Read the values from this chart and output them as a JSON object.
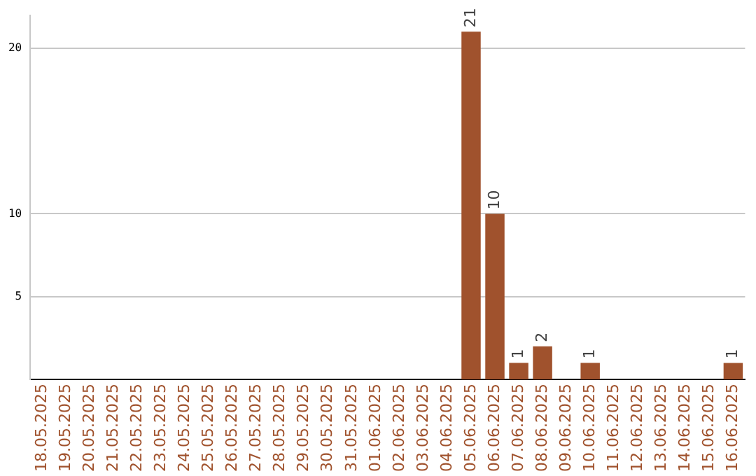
{
  "chart_data": {
    "type": "bar",
    "categories": [
      "18.05.2025",
      "19.05.2025",
      "20.05.2025",
      "21.05.2025",
      "22.05.2025",
      "23.05.2025",
      "24.05.2025",
      "25.05.2025",
      "26.05.2025",
      "27.05.2025",
      "28.05.2025",
      "29.05.2025",
      "30.05.2025",
      "31.05.2025",
      "01.06.2025",
      "02.06.2025",
      "03.06.2025",
      "04.06.2025",
      "05.06.2025",
      "06.06.2025",
      "07.06.2025",
      "08.06.2025",
      "09.06.2025",
      "10.06.2025",
      "11.06.2025",
      "12.06.2025",
      "13.06.2025",
      "14.06.2025",
      "15.06.2025",
      "16.06.2025"
    ],
    "values": [
      0,
      0,
      0,
      0,
      0,
      0,
      0,
      0,
      0,
      0,
      0,
      0,
      0,
      0,
      0,
      0,
      0,
      0,
      21,
      10,
      1,
      2,
      0,
      1,
      0,
      0,
      0,
      0,
      0,
      1
    ],
    "value_labels": [
      null,
      null,
      null,
      null,
      null,
      null,
      null,
      null,
      null,
      null,
      null,
      null,
      null,
      null,
      null,
      null,
      null,
      null,
      "21",
      "10",
      "1",
      "2",
      null,
      "1",
      null,
      null,
      null,
      null,
      null,
      "1"
    ],
    "color": "#a0522d",
    "ylim": [
      0,
      22
    ],
    "yticks": [
      5,
      10,
      20
    ],
    "grid": "y",
    "legend": false
  }
}
